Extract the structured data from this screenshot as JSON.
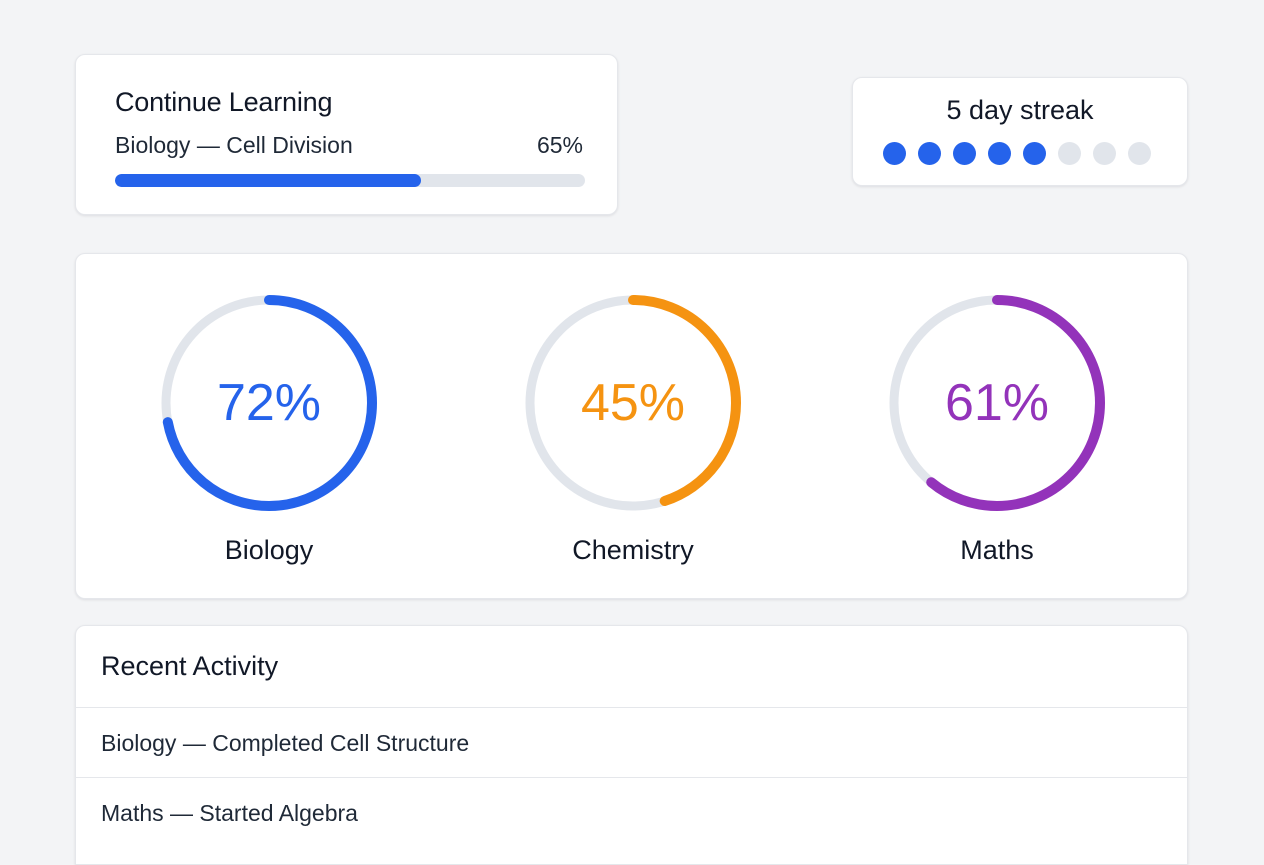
{
  "continue_learning": {
    "title": "Continue Learning",
    "course": "Biology — Cell Division",
    "progress_label": "65%",
    "progress": 0.65
  },
  "streak": {
    "title": "5 day streak",
    "completed_days": 5,
    "total_days": 8
  },
  "subjects": [
    {
      "name": "Biology",
      "percent_label": "72%",
      "progress": 0.72,
      "color": "#2563eb"
    },
    {
      "name": "Chemistry",
      "percent_label": "45%",
      "progress": 0.45,
      "color": "#f59311"
    },
    {
      "name": "Maths",
      "percent_label": "61%",
      "progress": 0.61,
      "color": "#9333ba"
    }
  ],
  "colors": {
    "accent": "#2563eb",
    "track": "#e1e5eb"
  },
  "recent_activity": {
    "title": "Recent Activity",
    "items": [
      "Biology — Completed Cell Structure",
      "Maths — Started Algebra"
    ]
  }
}
